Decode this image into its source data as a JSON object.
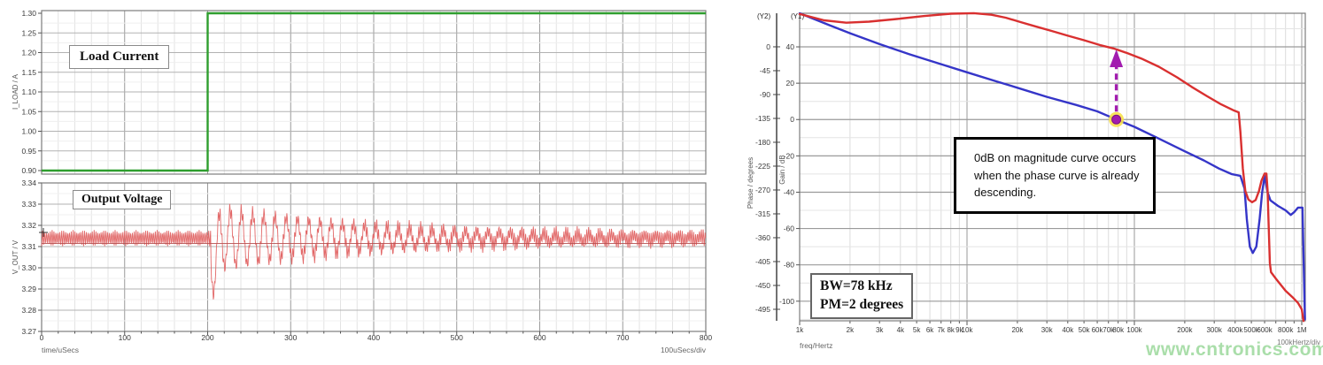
{
  "watermark": "www.cntronics.com",
  "transient_panel": {
    "load_label": "Load Current",
    "vout_label": "Output Voltage",
    "x_axis_title": "time/uSecs",
    "x_div_label": "100uSecs/div",
    "load_axis_title": "I_LOAD / A",
    "vout_axis_title": "V_OUT / V",
    "x_ticks": [
      0,
      100,
      200,
      300,
      400,
      500,
      600,
      700,
      800
    ],
    "load_y_ticks": [
      1.3,
      1.25,
      1.2,
      1.15,
      1.1,
      1.05,
      1.0,
      0.95,
      0.9
    ],
    "vout_y_ticks": [
      3.34,
      3.33,
      3.32,
      3.31,
      3.3,
      3.29,
      3.28,
      3.27
    ]
  },
  "bode_panel": {
    "y2_header": "(Y2)",
    "y1_header": "(Y1)",
    "phase_axis_title": "Phase / degrees",
    "gain_axis_title": "Gain / dB",
    "x_axis_title": "freq/Hertz",
    "x_div_label": "100kHertz/div",
    "annotation": "0dB on magnitude curve occurs when the phase curve is already descending.",
    "bw_label": "BW=78 kHz",
    "pm_label": "PM=2 degrees",
    "phase_ticks": [
      0,
      -45,
      -90,
      -135,
      -180,
      -225,
      -270,
      -315,
      -360,
      -405,
      -450,
      -495
    ],
    "gain_ticks": [
      40,
      20,
      0,
      -20,
      -40,
      -60,
      -80,
      -100
    ],
    "marker_color": "#a21caf",
    "marker_halo_color": "#f7e04a"
  },
  "chart_data": [
    {
      "id": "load_current",
      "type": "line",
      "title": "Load Current",
      "xlabel": "time/uSecs",
      "ylabel": "I_LOAD / A",
      "xlim": [
        0,
        800
      ],
      "ylim": [
        0.891,
        1.3067
      ],
      "x_major_step": 100,
      "x_minor_step": 20,
      "y_major_step": 0.05,
      "series": [
        {
          "name": "I_LOAD",
          "color": "#2e9e2e",
          "points": [
            [
              0,
              0.9
            ],
            [
              200,
              0.9
            ],
            [
              200,
              1.3
            ],
            [
              800,
              1.3
            ]
          ]
        }
      ]
    },
    {
      "id": "output_voltage",
      "type": "line",
      "title": "Output Voltage",
      "xlabel": "time/uSecs",
      "ylabel": "V_OUT / V",
      "xlim": [
        0,
        800
      ],
      "ylim": [
        3.27,
        3.34
      ],
      "x_major_step": 100,
      "x_minor_step": 20,
      "y_major_step": 0.01,
      "series": [
        {
          "name": "V_OUT",
          "color": "#e26868"
        }
      ],
      "signal": {
        "base_v": 3.314,
        "ripple_pp_v": 0.0076,
        "ripple_period_us": 2.3,
        "step_time_us": 200,
        "ring_start_us": 207,
        "ring_amplitude_v": 0.0145,
        "undershoot_extra_v": 0.012,
        "undershoot_min_v": 3.2845,
        "overshoot_max_v": 3.327,
        "ring_period_us": 13.5,
        "ring_decay_tau_us": 215
      }
    },
    {
      "id": "loop_bode",
      "type": "line",
      "xlabel": "freq/Hertz",
      "x_scale": "log",
      "xlim": [
        1000,
        1050000
      ],
      "gain_ylim": [
        -110.8,
        58.5
      ],
      "phase_ylim": [
        -516.7,
        63.3
      ],
      "crossover": {
        "freq_hz": 78000,
        "gain_db": 0,
        "bandwidth_khz": 78,
        "phase_margin_deg": 2
      },
      "x_tick_labels": [
        [
          "1k",
          1000
        ],
        [
          "2k",
          2000
        ],
        [
          "3k",
          3000
        ],
        [
          "4k",
          4000
        ],
        [
          "5k",
          5000
        ],
        [
          "6k",
          6000
        ],
        [
          "7k",
          7000
        ],
        [
          "8k",
          8000
        ],
        [
          "9k",
          9000
        ],
        [
          "10k",
          10000
        ],
        [
          "20k",
          20000
        ],
        [
          "30k",
          30000
        ],
        [
          "40k",
          40000
        ],
        [
          "50k",
          50000
        ],
        [
          "60k",
          60000
        ],
        [
          "70k",
          70000
        ],
        [
          "80k",
          80000
        ],
        [
          "100k",
          100000
        ],
        [
          "200k",
          200000
        ],
        [
          "300k",
          300000
        ],
        [
          "400k",
          400000
        ],
        [
          "500k",
          500000
        ],
        [
          "600k",
          600000
        ],
        [
          "800k",
          800000
        ],
        [
          "1M",
          1000000
        ]
      ],
      "series": [
        {
          "name": "Gain / dB",
          "axis": "gain",
          "color": "#3535c8",
          "points": [
            [
              1000,
              58.5
            ],
            [
              1500,
              52
            ],
            [
              2000,
              47.5
            ],
            [
              3000,
              41.5
            ],
            [
              4500,
              36
            ],
            [
              7000,
              30.5
            ],
            [
              10000,
              26
            ],
            [
              15000,
              21
            ],
            [
              20000,
              17.5
            ],
            [
              30000,
              12.5
            ],
            [
              45000,
              8
            ],
            [
              60000,
              4.5
            ],
            [
              78000,
              0
            ],
            [
              100000,
              -4
            ],
            [
              140000,
              -10.5
            ],
            [
              200000,
              -17.5
            ],
            [
              260000,
              -22.5
            ],
            [
              320000,
              -27
            ],
            [
              380000,
              -30
            ],
            [
              430000,
              -31
            ],
            [
              455000,
              -38
            ],
            [
              470000,
              -55
            ],
            [
              490000,
              -70
            ],
            [
              510000,
              -73.5
            ],
            [
              535000,
              -70
            ],
            [
              560000,
              -55
            ],
            [
              580000,
              -40
            ],
            [
              600000,
              -31
            ],
            [
              625000,
              -40
            ],
            [
              650000,
              -44.5
            ],
            [
              720000,
              -47.5
            ],
            [
              800000,
              -50
            ],
            [
              860000,
              -52.5
            ],
            [
              900000,
              -51
            ],
            [
              950000,
              -48.5
            ],
            [
              1010000,
              -48.5
            ],
            [
              1045000,
              -110
            ]
          ]
        },
        {
          "name": "Phase / degrees",
          "axis": "phase",
          "color": "#d93030",
          "points": [
            [
              1000,
              62
            ],
            [
              1400,
              50
            ],
            [
              1900,
              45.5
            ],
            [
              2600,
              47.5
            ],
            [
              3800,
              52.5
            ],
            [
              5500,
              58
            ],
            [
              8000,
              62.5
            ],
            [
              11000,
              63.5
            ],
            [
              14000,
              60.5
            ],
            [
              17000,
              55
            ],
            [
              21000,
              46.5
            ],
            [
              26000,
              38
            ],
            [
              32000,
              30
            ],
            [
              40000,
              21
            ],
            [
              50000,
              12.5
            ],
            [
              62000,
              3.5
            ],
            [
              75000,
              -3
            ],
            [
              90000,
              -11.5
            ],
            [
              110000,
              -22
            ],
            [
              140000,
              -37.5
            ],
            [
              180000,
              -57.5
            ],
            [
              220000,
              -75.5
            ],
            [
              270000,
              -92.5
            ],
            [
              330000,
              -108.5
            ],
            [
              390000,
              -119.5
            ],
            [
              420000,
              -123.5
            ],
            [
              430000,
              -160
            ],
            [
              445000,
              -230
            ],
            [
              460000,
              -272
            ],
            [
              480000,
              -288
            ],
            [
              505000,
              -293
            ],
            [
              530000,
              -289
            ],
            [
              555000,
              -272
            ],
            [
              575000,
              -252
            ],
            [
              600000,
              -239
            ],
            [
              615000,
              -239
            ],
            [
              625000,
              -270
            ],
            [
              635000,
              -340
            ],
            [
              645000,
              -408
            ],
            [
              655000,
              -425
            ],
            [
              700000,
              -437
            ],
            [
              800000,
              -460
            ],
            [
              880000,
              -472
            ],
            [
              950000,
              -483
            ],
            [
              1000000,
              -495
            ],
            [
              1025000,
              -517
            ]
          ]
        }
      ]
    }
  ]
}
